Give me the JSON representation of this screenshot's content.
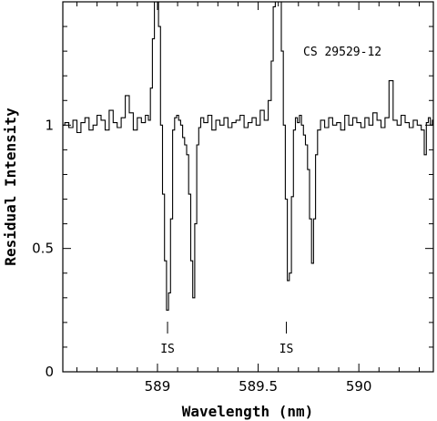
{
  "chart_data": {
    "type": "line",
    "title": "",
    "annotation": "CS 29529-12",
    "xlabel": "Wavelength (nm)",
    "ylabel": "Residual Intensity",
    "xlim": [
      588.53,
      590.37
    ],
    "ylim": [
      0,
      1.5
    ],
    "x_ticks": [
      {
        "value": 589,
        "label": "589"
      },
      {
        "value": 589.5,
        "label": "589.5"
      },
      {
        "value": 590,
        "label": "590"
      }
    ],
    "y_ticks": [
      {
        "value": 0,
        "label": "0"
      },
      {
        "value": 0.5,
        "label": "0.5"
      },
      {
        "value": 1,
        "label": "1"
      }
    ],
    "is_markers": [
      {
        "x": 589.05,
        "label": "IS"
      },
      {
        "x": 589.64,
        "label": "IS"
      }
    ],
    "series": [
      {
        "color": "#000000",
        "x": [
          588.53,
          588.55,
          588.57,
          588.59,
          588.61,
          588.63,
          588.65,
          588.67,
          588.69,
          588.71,
          588.73,
          588.75,
          588.77,
          588.79,
          588.81,
          588.83,
          588.85,
          588.87,
          588.89,
          588.91,
          588.93,
          588.95,
          588.96,
          588.97,
          588.98,
          588.99,
          589.0,
          589.01,
          589.02,
          589.03,
          589.04,
          589.05,
          589.06,
          589.07,
          589.08,
          589.09,
          589.1,
          589.11,
          589.12,
          589.13,
          589.14,
          589.15,
          589.16,
          589.17,
          589.18,
          589.19,
          589.2,
          589.21,
          589.22,
          589.24,
          589.26,
          589.28,
          589.3,
          589.32,
          589.34,
          589.36,
          589.38,
          589.4,
          589.42,
          589.44,
          589.46,
          589.48,
          589.5,
          589.52,
          589.54,
          589.56,
          589.57,
          589.58,
          589.59,
          589.6,
          589.61,
          589.62,
          589.63,
          589.64,
          589.65,
          589.66,
          589.67,
          589.68,
          589.69,
          589.7,
          589.71,
          589.72,
          589.73,
          589.74,
          589.75,
          589.76,
          589.77,
          589.78,
          589.79,
          589.8,
          589.82,
          589.84,
          589.86,
          589.88,
          589.9,
          589.92,
          589.94,
          589.96,
          589.98,
          590.0,
          590.02,
          590.04,
          590.06,
          590.08,
          590.1,
          590.12,
          590.14,
          590.16,
          590.18,
          590.2,
          590.22,
          590.24,
          590.26,
          590.28,
          590.3,
          590.32,
          590.33,
          590.34,
          590.35,
          590.36,
          590.37
        ],
        "y": [
          1.0,
          1.01,
          0.99,
          1.02,
          0.97,
          1.01,
          1.03,
          0.98,
          1.0,
          1.04,
          1.02,
          0.98,
          1.06,
          1.01,
          0.99,
          1.03,
          1.12,
          1.05,
          0.98,
          1.03,
          1.01,
          1.04,
          1.02,
          1.15,
          1.35,
          1.62,
          1.8,
          1.4,
          1.0,
          0.72,
          0.45,
          0.25,
          0.32,
          0.62,
          0.98,
          1.03,
          1.04,
          1.02,
          1.0,
          0.95,
          0.92,
          0.88,
          0.72,
          0.45,
          0.3,
          0.6,
          0.92,
          0.99,
          1.03,
          1.01,
          1.04,
          0.98,
          1.02,
          1.0,
          1.03,
          0.99,
          1.01,
          1.02,
          1.04,
          0.99,
          1.01,
          1.03,
          1.0,
          1.06,
          1.02,
          1.1,
          1.26,
          1.48,
          1.62,
          1.78,
          1.58,
          1.3,
          1.0,
          0.7,
          0.37,
          0.4,
          0.71,
          0.98,
          1.03,
          1.01,
          1.04,
          1.0,
          0.96,
          0.92,
          0.82,
          0.62,
          0.44,
          0.62,
          0.88,
          0.98,
          1.02,
          0.99,
          1.03,
          1.0,
          1.01,
          0.98,
          1.04,
          1.0,
          1.03,
          1.01,
          0.99,
          1.03,
          1.0,
          1.05,
          1.02,
          0.99,
          1.03,
          1.18,
          1.02,
          1.0,
          1.04,
          1.01,
          0.99,
          1.02,
          1.0,
          0.98,
          0.88,
          1.01,
          1.03,
          1.0,
          1.02
        ]
      }
    ]
  }
}
